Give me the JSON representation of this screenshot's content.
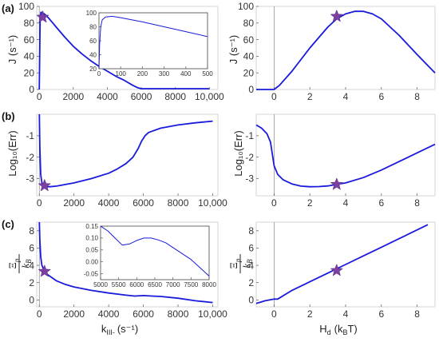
{
  "panel_labels": [
    "(a)",
    "(b)",
    "(c)"
  ],
  "axis_labels": {
    "J": "J (s⁻¹)",
    "err": "Log₁₀(Err)",
    "xi_num": "Ξ",
    "xi_sub": "p",
    "xi_den": "k",
    "xi_den_sub": "B",
    "k_main": "k",
    "k_sub": "III-",
    "k_unit": "(s⁻¹)",
    "h_main": "H",
    "h_sub": "d",
    "h_unit": "(k",
    "h_unit_sub": "B",
    "h_unit_end": "T)"
  },
  "colors": {
    "curve": "#1a1adc",
    "star": "#7a3fa0",
    "axis": "#888888"
  },
  "chart_data": [
    {
      "id": "a-left",
      "type": "line",
      "x": [
        0,
        50,
        100,
        200,
        300,
        500,
        800,
        1000,
        1500,
        2000,
        2500,
        3000,
        3500,
        4000,
        4500,
        5000,
        5500,
        5800,
        6000,
        7000,
        8000,
        9000,
        10000
      ],
      "y": [
        0,
        85,
        93,
        92,
        91,
        87,
        80,
        75,
        63,
        52,
        43,
        35,
        28,
        22,
        16,
        11,
        5,
        2,
        1,
        1,
        1,
        1,
        1
      ],
      "xlim": [
        -150,
        10500
      ],
      "ylim": [
        0,
        100
      ],
      "xticks": [
        0,
        2000,
        4000,
        6000,
        8000,
        10000
      ],
      "xtick_labels": [
        "0",
        "2000",
        "4000",
        "6000",
        "8000",
        "10,000"
      ],
      "yticks": [
        0,
        20,
        40,
        60,
        80,
        100
      ],
      "ylabel": "J (s⁻¹)",
      "star": [
        200,
        87
      ]
    },
    {
      "id": "a-inset",
      "type": "line",
      "x": [
        0,
        3,
        8,
        15,
        30,
        60,
        100,
        200,
        300,
        400,
        500
      ],
      "y": [
        20,
        55,
        80,
        90,
        94,
        95,
        93,
        87,
        80,
        73,
        66
      ],
      "xlim": [
        0,
        500
      ],
      "ylim": [
        20,
        100
      ],
      "xticks": [
        0,
        100,
        200,
        300,
        400,
        500
      ],
      "yticks": [
        20,
        40,
        60,
        80,
        100
      ]
    },
    {
      "id": "a-right",
      "type": "line",
      "x": [
        -1,
        -0.5,
        0,
        0.3,
        1,
        2,
        3,
        3.5,
        4,
        4.5,
        5,
        5.5,
        6,
        7,
        8,
        9
      ],
      "y": [
        0,
        0,
        0,
        5,
        22,
        50,
        75,
        85,
        91,
        94,
        94,
        91,
        85,
        65,
        42,
        20
      ],
      "xlim": [
        -1,
        9
      ],
      "ylim": [
        0,
        100
      ],
      "xticks": [
        0,
        2,
        4,
        6,
        8
      ],
      "yticks": [
        0,
        20,
        40,
        60,
        80,
        100
      ],
      "ylabel": "J (s⁻¹)",
      "star": [
        3.5,
        88
      ]
    },
    {
      "id": "b-left",
      "type": "line",
      "x": [
        0,
        30,
        80,
        150,
        300,
        600,
        1000,
        2000,
        3000,
        4000,
        4500,
        5000,
        5400,
        5700,
        5900,
        6100,
        6300,
        7000,
        8000,
        9000,
        10000
      ],
      "y": [
        0,
        -1.5,
        -2.8,
        -3.2,
        -3.37,
        -3.38,
        -3.35,
        -3.2,
        -3.0,
        -2.75,
        -2.55,
        -2.3,
        -2.0,
        -1.6,
        -1.25,
        -1.0,
        -0.85,
        -0.65,
        -0.5,
        -0.4,
        -0.32
      ],
      "xlim": [
        -150,
        10300
      ],
      "ylim": [
        -3.8,
        0
      ],
      "xticks": [
        0,
        2000,
        4000,
        6000,
        8000,
        10000
      ],
      "xtick_labels": [
        "0",
        "2000",
        "4000",
        "6000",
        "8000",
        "10,000"
      ],
      "yticks": [
        -3,
        -2,
        -1
      ],
      "ylabel": "Log₁₀(Err)",
      "star": [
        300,
        -3.33
      ]
    },
    {
      "id": "b-right",
      "type": "line",
      "x": [
        -1,
        -0.7,
        -0.4,
        -0.2,
        0,
        0.2,
        0.5,
        1,
        1.5,
        2,
        2.5,
        3,
        4,
        5,
        6,
        7,
        8,
        9
      ],
      "y": [
        -0.5,
        -0.65,
        -0.9,
        -1.3,
        -2.4,
        -2.8,
        -3.05,
        -3.25,
        -3.35,
        -3.38,
        -3.37,
        -3.34,
        -3.2,
        -2.95,
        -2.6,
        -2.2,
        -1.8,
        -1.4
      ],
      "xlim": [
        -1,
        9
      ],
      "ylim": [
        -3.8,
        0
      ],
      "xticks": [
        0,
        2,
        4,
        6,
        8
      ],
      "yticks": [
        -3,
        -2,
        -1
      ],
      "ylabel": "Log₁₀(Err)",
      "star": [
        3.5,
        -3.27
      ]
    },
    {
      "id": "c-left",
      "type": "line",
      "x": [
        0,
        30,
        80,
        150,
        300,
        500,
        1000,
        1500,
        2000,
        3000,
        4000,
        5000,
        5500,
        6000,
        6500,
        7000,
        8000,
        9000,
        10000
      ],
      "y": [
        9,
        7,
        5,
        4,
        3.3,
        2.9,
        2.2,
        1.8,
        1.5,
        1.1,
        0.8,
        0.55,
        0.45,
        0.5,
        0.45,
        0.4,
        0.2,
        -0.1,
        -0.3
      ],
      "xlim": [
        -150,
        10300
      ],
      "ylim": [
        -0.8,
        9
      ],
      "xticks": [
        0,
        2000,
        4000,
        6000,
        8000,
        10000
      ],
      "xtick_labels": [
        "0",
        "2000",
        "4000",
        "6000",
        "8000",
        "10,000"
      ],
      "yticks": [
        0,
        2,
        4,
        6,
        8
      ],
      "star": [
        300,
        3.3
      ]
    },
    {
      "id": "c-inset",
      "type": "line",
      "x": [
        5000,
        5200,
        5400,
        5600,
        5800,
        6000,
        6200,
        6400,
        6600,
        6800,
        7000,
        7500,
        8000
      ],
      "y": [
        0.15,
        0.13,
        0.1,
        0.07,
        0.075,
        0.09,
        0.1,
        0.1,
        0.092,
        0.08,
        0.06,
        0.01,
        -0.06
      ],
      "xlim": [
        5000,
        8000
      ],
      "ylim": [
        -0.075,
        0.15
      ],
      "xticks": [
        5000,
        5500,
        6000,
        6500,
        7000,
        7500,
        8000
      ],
      "yticks": [
        -0.05,
        0,
        0.05,
        0.1,
        0.15
      ],
      "ytick_labels": [
        "-0.05",
        "0.00",
        "0.05",
        "0.10",
        "0.15"
      ]
    },
    {
      "id": "c-right",
      "type": "line",
      "x": [
        -1,
        -0.5,
        0,
        0.2,
        1,
        2,
        3,
        4,
        5,
        6,
        7,
        8,
        8.6
      ],
      "y": [
        -0.4,
        -0.1,
        0.1,
        0.1,
        1.1,
        2.1,
        3.1,
        4.1,
        5.1,
        6.1,
        7.1,
        8.1,
        8.7
      ],
      "xlim": [
        -1,
        9
      ],
      "ylim": [
        -0.8,
        9
      ],
      "xticks": [
        0,
        2,
        4,
        6,
        8
      ],
      "yticks": [
        0,
        2,
        4,
        6,
        8
      ],
      "star": [
        3.5,
        3.4
      ]
    }
  ]
}
